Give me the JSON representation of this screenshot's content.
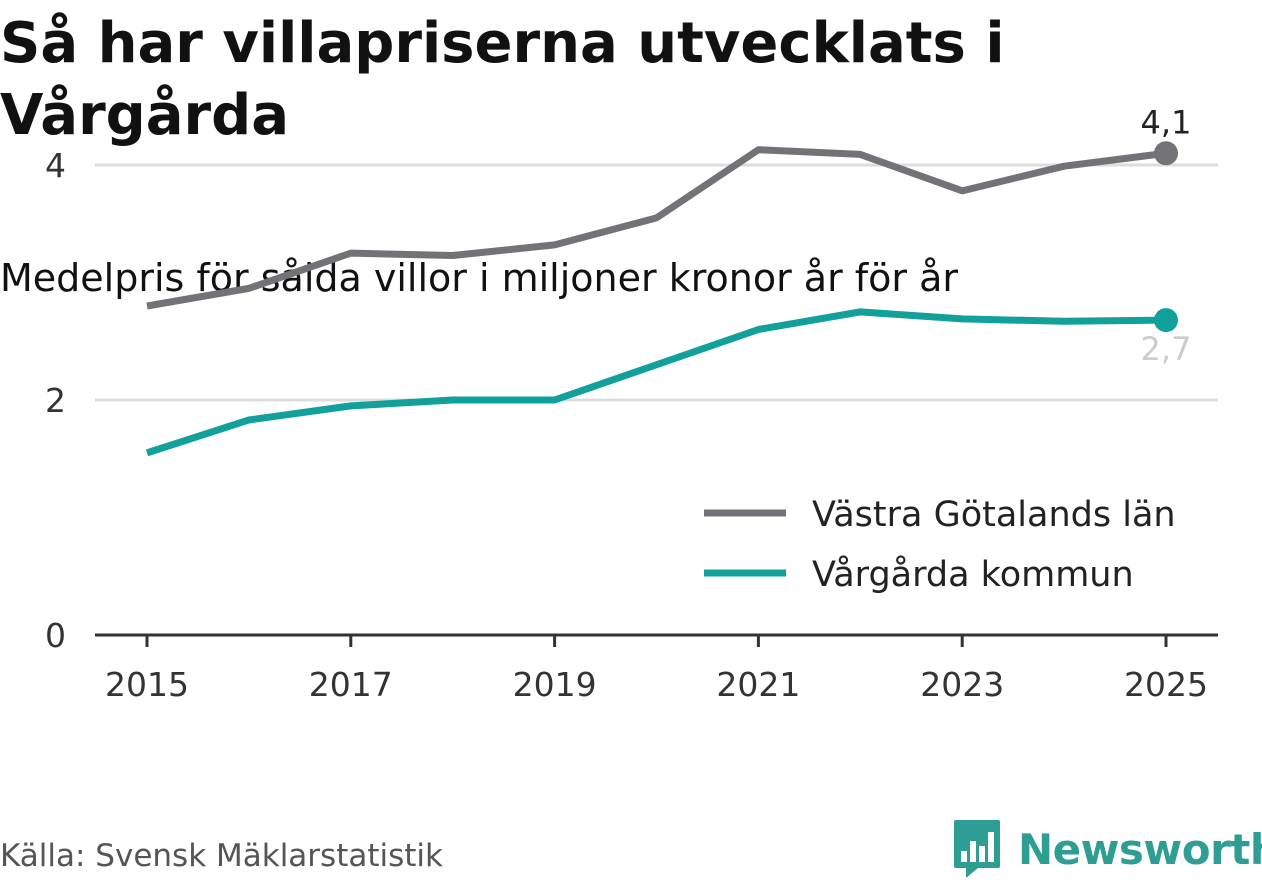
{
  "title": "Så har villapriserna utvecklats i Vårgårda",
  "subtitle": "Medelpris för sålda villor i miljoner kronor år för år",
  "source": "Källa: Svensk Mäklarstatistik",
  "brand": {
    "name": "Newsworthy",
    "icon": "newsworthy-logo-icon",
    "color": "#2e9e95"
  },
  "colors": {
    "region": "#737277",
    "municipality": "#11a19a",
    "grid": "#dddddd",
    "axis": "#333333"
  },
  "chart_data": {
    "type": "line",
    "title": "Så har villapriserna utvecklats i Vårgårda",
    "subtitle": "Medelpris för sålda villor i miljoner kronor år för år",
    "x": [
      2015,
      2016,
      2017,
      2018,
      2019,
      2020,
      2021,
      2022,
      2023,
      2024,
      2025
    ],
    "x_ticks": [
      "2015",
      "2017",
      "2019",
      "2021",
      "2023",
      "2025"
    ],
    "y_ticks": [
      "0",
      "2",
      "4"
    ],
    "ylim": [
      0,
      4.8
    ],
    "xlabel": "",
    "ylabel": "",
    "grid": true,
    "legend_position": "bottom-right",
    "series": [
      {
        "name": "Västra Götalands län",
        "values": [
          2.8,
          2.95,
          3.25,
          3.23,
          3.32,
          3.55,
          4.13,
          4.09,
          3.78,
          3.99,
          4.1
        ],
        "end_label": "4,1"
      },
      {
        "name": "Vårgårda kommun",
        "values": [
          1.55,
          1.83,
          1.95,
          2.0,
          2.0,
          2.3,
          2.6,
          2.75,
          2.69,
          2.67,
          2.68
        ],
        "end_label": "2,7"
      }
    ]
  }
}
